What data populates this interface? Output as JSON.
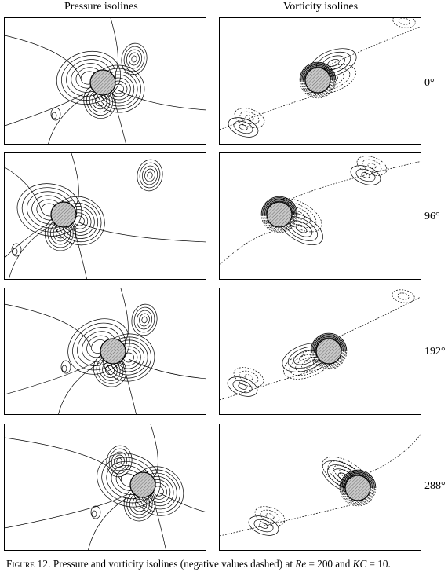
{
  "columns": {
    "pressure_title": "Pressure isolines",
    "vorticity_title": "Vorticity isolines"
  },
  "phases": [
    "0°",
    "96°",
    "192°",
    "288°"
  ],
  "caption": {
    "figure_label": "Figure 12.",
    "text_a": " Pressure and vorticity isolines (negative values dashed) at ",
    "re_symbol": "Re",
    "re_value": " = 200 and ",
    "kc_symbol": "KC",
    "kc_value": " = 10."
  },
  "style": {
    "line_color": "#000000",
    "cylinder_fill": "#c8c8c8"
  }
}
